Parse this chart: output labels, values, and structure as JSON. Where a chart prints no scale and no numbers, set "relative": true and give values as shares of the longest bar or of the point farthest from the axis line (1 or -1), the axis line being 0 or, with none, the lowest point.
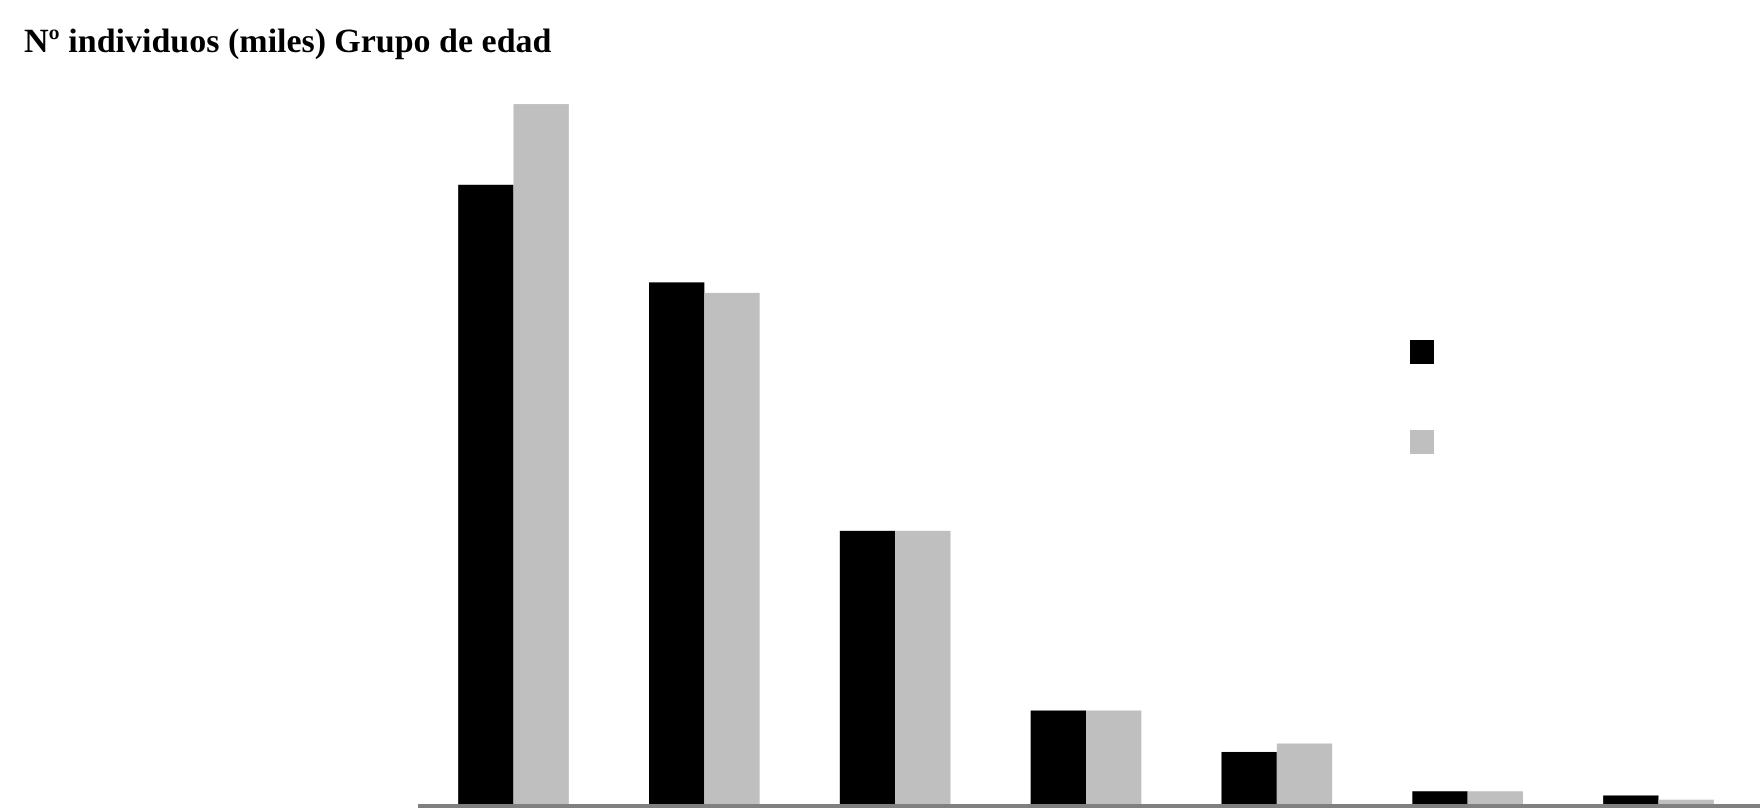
{
  "chart_data": {
    "type": "bar",
    "ylabel": "Nº individuos (miles)",
    "xlabel": "Grupo de edad",
    "relative": true,
    "categories": [
      null,
      null,
      null,
      null,
      null,
      null,
      null
    ],
    "series": [
      {
        "color": "#000000",
        "values": [
          0.885,
          0.746,
          0.392,
          0.136,
          0.077,
          0.021,
          0.015
        ]
      },
      {
        "color": "#bfbfbf",
        "values": [
          1,
          0.731,
          0.392,
          0.136,
          0.089,
          0.021,
          0.009
        ]
      }
    ]
  }
}
